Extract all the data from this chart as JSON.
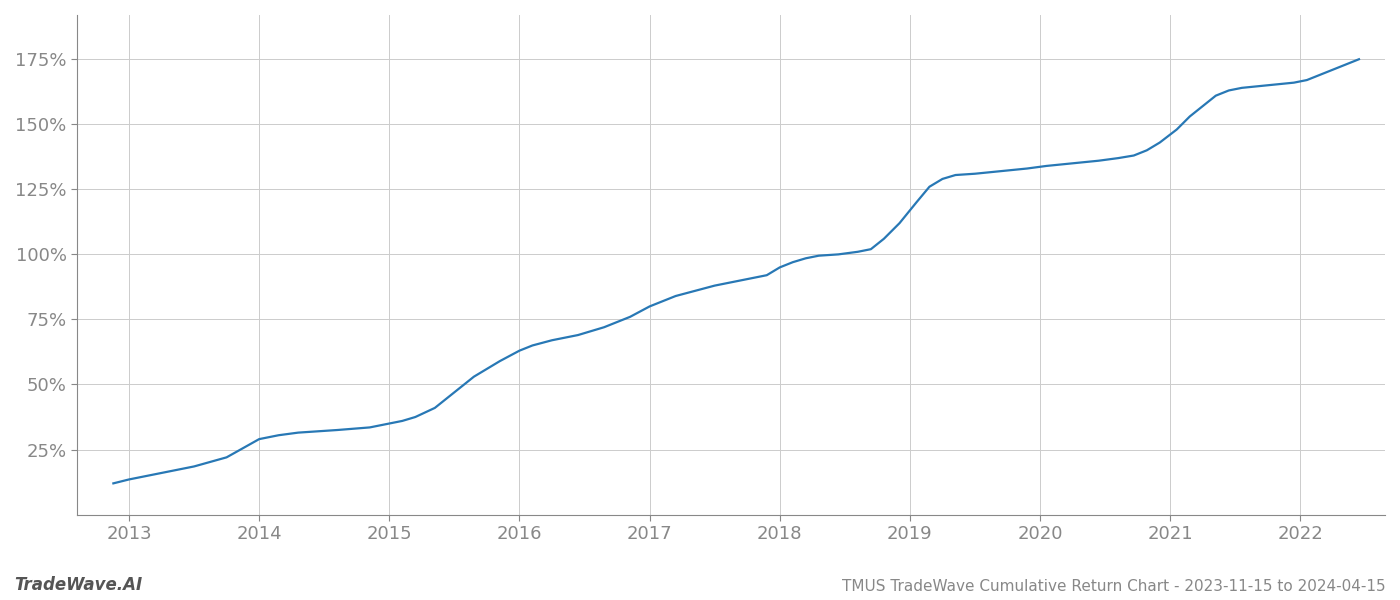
{
  "title": "TMUS TradeWave Cumulative Return Chart - 2023-11-15 to 2024-04-15",
  "watermark": "TradeWave.AI",
  "line_color": "#2878b5",
  "background_color": "#ffffff",
  "grid_color": "#cccccc",
  "x_years": [
    2013,
    2014,
    2015,
    2016,
    2017,
    2018,
    2019,
    2020,
    2021,
    2022
  ],
  "data_points": [
    [
      2012.88,
      12
    ],
    [
      2013.0,
      13.5
    ],
    [
      2013.2,
      15.5
    ],
    [
      2013.5,
      18.5
    ],
    [
      2013.75,
      22
    ],
    [
      2014.0,
      29
    ],
    [
      2014.15,
      30.5
    ],
    [
      2014.3,
      31.5
    ],
    [
      2014.6,
      32.5
    ],
    [
      2014.85,
      33.5
    ],
    [
      2015.0,
      35
    ],
    [
      2015.1,
      36
    ],
    [
      2015.2,
      37.5
    ],
    [
      2015.35,
      41
    ],
    [
      2015.5,
      47
    ],
    [
      2015.65,
      53
    ],
    [
      2015.85,
      59
    ],
    [
      2016.0,
      63
    ],
    [
      2016.1,
      65
    ],
    [
      2016.25,
      67
    ],
    [
      2016.45,
      69
    ],
    [
      2016.65,
      72
    ],
    [
      2016.85,
      76
    ],
    [
      2017.0,
      80
    ],
    [
      2017.1,
      82
    ],
    [
      2017.2,
      84
    ],
    [
      2017.35,
      86
    ],
    [
      2017.5,
      88
    ],
    [
      2017.7,
      90
    ],
    [
      2017.9,
      92
    ],
    [
      2018.0,
      95
    ],
    [
      2018.1,
      97
    ],
    [
      2018.2,
      98.5
    ],
    [
      2018.3,
      99.5
    ],
    [
      2018.45,
      100
    ],
    [
      2018.6,
      101
    ],
    [
      2018.7,
      102
    ],
    [
      2018.8,
      106
    ],
    [
      2018.92,
      112
    ],
    [
      2019.05,
      120
    ],
    [
      2019.15,
      126
    ],
    [
      2019.25,
      129
    ],
    [
      2019.35,
      130.5
    ],
    [
      2019.5,
      131
    ],
    [
      2019.7,
      132
    ],
    [
      2019.9,
      133
    ],
    [
      2020.05,
      134
    ],
    [
      2020.25,
      135
    ],
    [
      2020.45,
      136
    ],
    [
      2020.6,
      137
    ],
    [
      2020.72,
      138
    ],
    [
      2020.82,
      140
    ],
    [
      2020.92,
      143
    ],
    [
      2021.05,
      148
    ],
    [
      2021.15,
      153
    ],
    [
      2021.25,
      157
    ],
    [
      2021.35,
      161
    ],
    [
      2021.45,
      163
    ],
    [
      2021.55,
      164
    ],
    [
      2021.65,
      164.5
    ],
    [
      2021.75,
      165
    ],
    [
      2021.85,
      165.5
    ],
    [
      2021.95,
      166
    ],
    [
      2022.05,
      167
    ],
    [
      2022.15,
      169
    ],
    [
      2022.25,
      171
    ],
    [
      2022.35,
      173
    ],
    [
      2022.45,
      175
    ]
  ],
  "ylim": [
    0,
    192
  ],
  "xlim": [
    2012.6,
    2022.65
  ],
  "yticks": [
    25,
    50,
    75,
    100,
    125,
    150,
    175
  ],
  "title_fontsize": 11,
  "watermark_fontsize": 12,
  "axis_tick_fontsize": 13,
  "line_width": 1.6,
  "spine_color": "#888888",
  "tick_label_color": "#888888"
}
